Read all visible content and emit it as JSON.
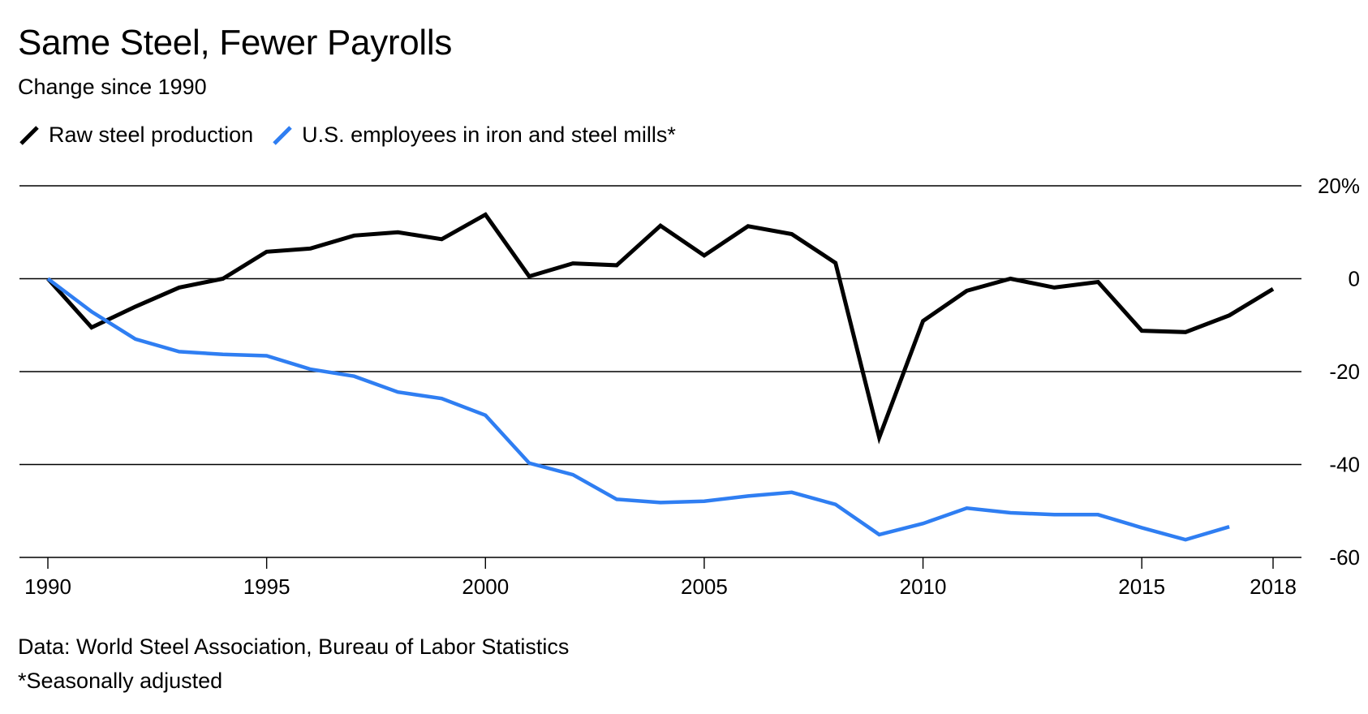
{
  "chart_data": {
    "type": "line",
    "title": "Same Steel, Fewer Payrolls",
    "subtitle": "Change since 1990",
    "ylim": [
      -60,
      20
    ],
    "y_ticks": [
      {
        "value": 20,
        "label": "20%"
      },
      {
        "value": 0,
        "label": "0"
      },
      {
        "value": -20,
        "label": "-20"
      },
      {
        "value": -40,
        "label": "-40"
      },
      {
        "value": -60,
        "label": "-60"
      }
    ],
    "xlim": [
      1990,
      2018
    ],
    "x_ticks": [
      {
        "value": 1990,
        "label": "1990"
      },
      {
        "value": 1995,
        "label": "1995"
      },
      {
        "value": 2000,
        "label": "2000"
      },
      {
        "value": 2005,
        "label": "2005"
      },
      {
        "value": 2010,
        "label": "2010"
      },
      {
        "value": 2015,
        "label": "2015"
      },
      {
        "value": 2018,
        "label": "2018"
      }
    ],
    "grid": true,
    "axis_side": "right",
    "legend_position": "top-left",
    "series": [
      {
        "name": "Raw steel production",
        "color": "#000000",
        "x": [
          1990,
          1991,
          1992,
          1993,
          1994,
          1995,
          1996,
          1997,
          1998,
          1999,
          2000,
          2001,
          2002,
          2003,
          2004,
          2005,
          2006,
          2007,
          2008,
          2009,
          2010,
          2011,
          2012,
          2013,
          2014,
          2015,
          2016,
          2017,
          2018
        ],
        "y": [
          0,
          -10.5,
          -6,
          -1.9,
          0,
          5.8,
          6.5,
          9.3,
          10,
          8.5,
          13.8,
          0.5,
          3.3,
          2.9,
          11.4,
          5,
          11.3,
          9.6,
          3.4,
          -34.2,
          -9.1,
          -2.6,
          0,
          -1.9,
          -0.7,
          -11.2,
          -11.5,
          -7.9,
          -2.2
        ]
      },
      {
        "name": "U.S. employees in iron and steel mills*",
        "color": "#2F7EF2",
        "x": [
          1990,
          1991,
          1992,
          1993,
          1994,
          1995,
          1996,
          1997,
          1998,
          1999,
          2000,
          2001,
          2002,
          2003,
          2004,
          2005,
          2006,
          2007,
          2008,
          2009,
          2010,
          2011,
          2012,
          2013,
          2014,
          2015,
          2016,
          2017
        ],
        "y": [
          0,
          -7.1,
          -13,
          -15.7,
          -16.3,
          -16.6,
          -19.5,
          -21,
          -24.4,
          -25.8,
          -29.4,
          -39.7,
          -42.2,
          -47.5,
          -48.2,
          -47.9,
          -46.8,
          -46,
          -48.6,
          -55.1,
          -52.7,
          -49.4,
          -50.4,
          -50.8,
          -50.8,
          -53.6,
          -56.2,
          -53.4
        ]
      }
    ]
  },
  "footer": {
    "source": "Data: World Steel Association, Bureau of Labor Statistics",
    "note": "*Seasonally adjusted"
  }
}
